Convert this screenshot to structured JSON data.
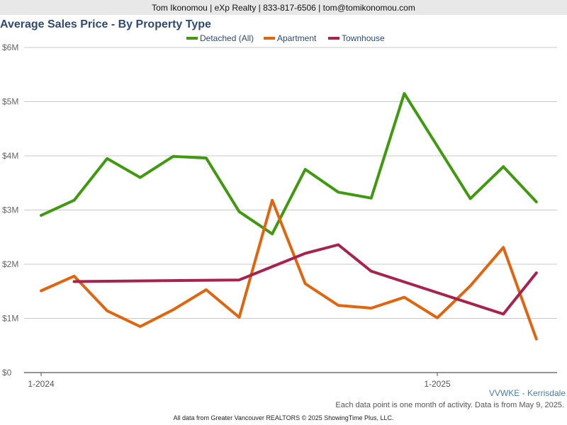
{
  "header": {
    "contact": "Tom Ikonomou | eXp Realty | 833-817-6506 | tom@tomikonomou.com"
  },
  "chart_data": {
    "type": "line",
    "title": "Average Sales Price - By Property Type",
    "xlabel": "",
    "ylabel": "",
    "ylim": [
      0,
      6000000
    ],
    "yticks": [
      0,
      1000000,
      2000000,
      3000000,
      4000000,
      5000000,
      6000000
    ],
    "ytick_labels": [
      "$0",
      "$1M",
      "$2M",
      "$3M",
      "$4M",
      "$5M",
      "$6M"
    ],
    "x": [
      "2024-01",
      "2024-02",
      "2024-03",
      "2024-04",
      "2024-05",
      "2024-06",
      "2024-07",
      "2024-08",
      "2024-09",
      "2024-10",
      "2024-11",
      "2024-12",
      "2025-01",
      "2025-02",
      "2025-03",
      "2025-04"
    ],
    "xticks": [
      {
        "x": "2024-01",
        "label": "1-2024"
      },
      {
        "x": "2025-01",
        "label": "1-2025"
      }
    ],
    "grid": true,
    "legend": "top-center",
    "series": [
      {
        "name": "Detached (All)",
        "color": "#3f9a10",
        "values": [
          2900000,
          3180000,
          3950000,
          3600000,
          3990000,
          3960000,
          2970000,
          2560000,
          3750000,
          3330000,
          3220000,
          5150000,
          4180000,
          3210000,
          3800000,
          3150000
        ]
      },
      {
        "name": "Apartment",
        "color": "#e0650e",
        "values": [
          1510000,
          1780000,
          1140000,
          850000,
          1160000,
          1530000,
          1020000,
          3180000,
          1640000,
          1240000,
          1190000,
          1390000,
          1010000,
          1600000,
          2310000,
          620000
        ]
      },
      {
        "name": "Townhouse",
        "color": "#a8224e",
        "values": [
          null,
          1680000,
          null,
          null,
          null,
          null,
          1710000,
          null,
          2200000,
          2360000,
          1870000,
          null,
          null,
          null,
          1080000,
          1840000
        ]
      }
    ]
  },
  "footer": {
    "region": "VVWKE - Kerrisdale",
    "note": "Each data point is one month of activity. Data is from May 9, 2025.",
    "credit": "All data from Greater Vancouver REALTORS © 2025 ShowingTime Plus, LLC."
  }
}
